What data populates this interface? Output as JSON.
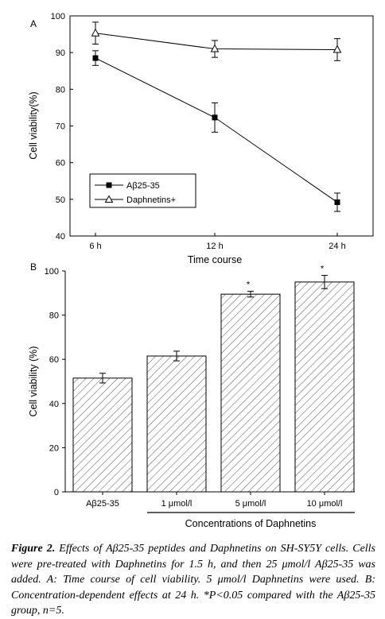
{
  "chart_data": [
    {
      "type": "line",
      "panel_label": "A",
      "categories": [
        "6 h",
        "12 h",
        "24 h"
      ],
      "xlabel": "Time course",
      "ylabel": "Cell viability(%)",
      "ylim": [
        40,
        100
      ],
      "yticks": [
        "40",
        "50",
        "60",
        "70",
        "80",
        "90",
        "100"
      ],
      "legend_position": "lower-left",
      "series": [
        {
          "name": "Aβ25-35",
          "marker": "filled-square",
          "values": [
            88.5,
            72.3,
            49.2
          ],
          "errors": [
            2.0,
            4.0,
            2.5
          ]
        },
        {
          "name": "Daphnetins+",
          "marker": "open-triangle",
          "values": [
            95.3,
            91.0,
            90.8
          ],
          "errors": [
            3.0,
            2.3,
            3.0
          ]
        }
      ]
    },
    {
      "type": "bar",
      "panel_label": "B",
      "categories": [
        "Aβ25-35",
        "1 μmol/l",
        "5 μmol/l",
        "10 μmol/l"
      ],
      "values": [
        51.5,
        61.5,
        89.5,
        95.0
      ],
      "errors": [
        2.2,
        2.2,
        1.3,
        3.0
      ],
      "significance": [
        "",
        "",
        "*",
        "*"
      ],
      "xlabel": "Concentrations of Daphnetins",
      "ylabel": "Cell viability (%)",
      "ylim": [
        0,
        100
      ],
      "yticks": [
        "0",
        "20",
        "40",
        "60",
        "80",
        "100"
      ],
      "fill": "diagonal-hatch"
    }
  ],
  "caption": {
    "figure_label": "Figure 2.",
    "text": "Effects of Aβ25-35 peptides and Daphnetins on SH-SY5Y cells. Cells were pre-treated with Daphnetins for 1.5 h, and then 25 μmol/l Aβ25-35 was added. A: Time course of cell viability. 5 μmol/l Daphnetins were used. B: Concentration-dependent effects at 24 h. *P<0.05 compared with the Aβ25-35 group, n=5."
  }
}
